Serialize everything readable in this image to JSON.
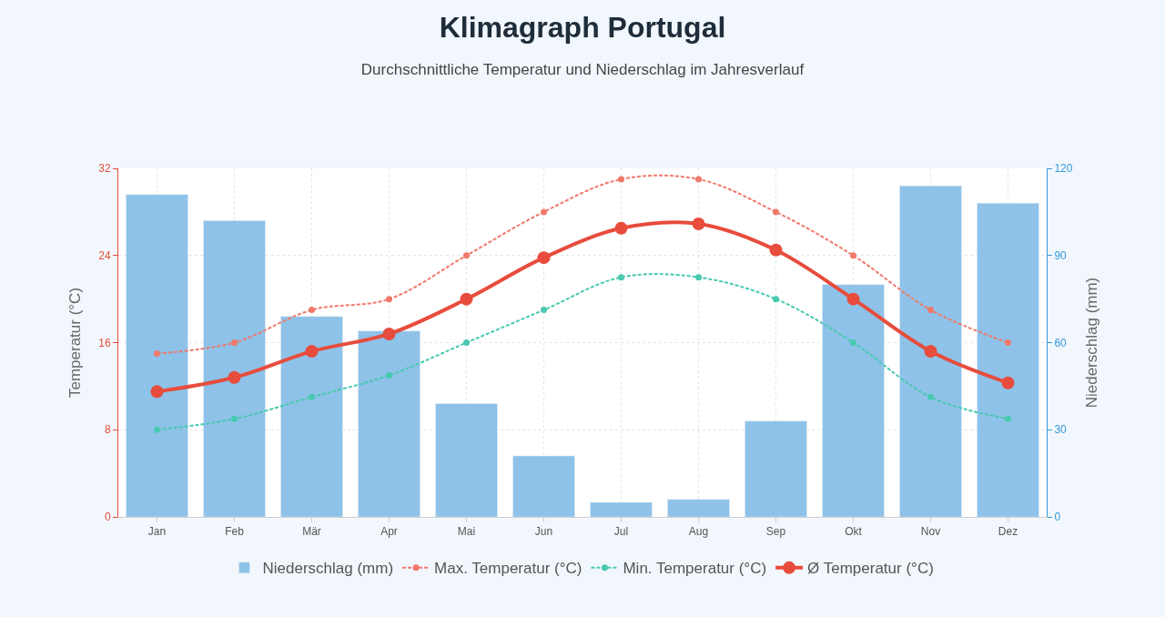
{
  "chart_data": {
    "type": "bar",
    "title": "Klimagraph Portugal",
    "subtitle": "Durchschnittliche Temperatur und Niederschlag im Jahresverlauf",
    "ylabel": "Temperatur (°C)",
    "y2label": "Niederschlag (mm)",
    "categories": [
      "Jan",
      "Feb",
      "Mär",
      "Apr",
      "Mai",
      "Jun",
      "Jul",
      "Aug",
      "Sep",
      "Okt",
      "Nov",
      "Dez"
    ],
    "series": [
      {
        "name": "Niederschlag (mm)",
        "axis": "y2",
        "color": "#8ec2e8",
        "values": [
          111,
          102,
          69,
          64,
          39,
          21,
          5,
          6,
          33,
          80,
          114,
          108
        ]
      },
      {
        "name": "Max. Temperatur (°C)",
        "type": "line",
        "line_style": "dashed",
        "color": "#f1796b",
        "values": [
          15,
          16,
          19,
          20,
          24,
          28,
          31,
          31,
          28,
          24,
          19,
          16
        ]
      },
      {
        "name": "Min. Temperatur (°C)",
        "type": "line",
        "line_style": "dashed",
        "color": "#48c9b0",
        "values": [
          8,
          9,
          11,
          13,
          16,
          19,
          22,
          22,
          20,
          16,
          11,
          9
        ]
      },
      {
        "name": "Ø Temperatur (°C)",
        "type": "line",
        "line_style": "solid",
        "color": "#e74c3c",
        "values": [
          11.5,
          12.8,
          15.2,
          16.8,
          20,
          23.8,
          26.5,
          26.9,
          24.5,
          20,
          15.2,
          12.3
        ]
      }
    ],
    "ylim": [
      0,
      32
    ],
    "yticks": [
      0,
      8,
      16,
      24,
      32
    ],
    "y2lim": [
      0,
      120
    ],
    "y2ticks": [
      0,
      30,
      60,
      90,
      120
    ],
    "grid": true,
    "legend": "bottom",
    "marker": "circle"
  }
}
